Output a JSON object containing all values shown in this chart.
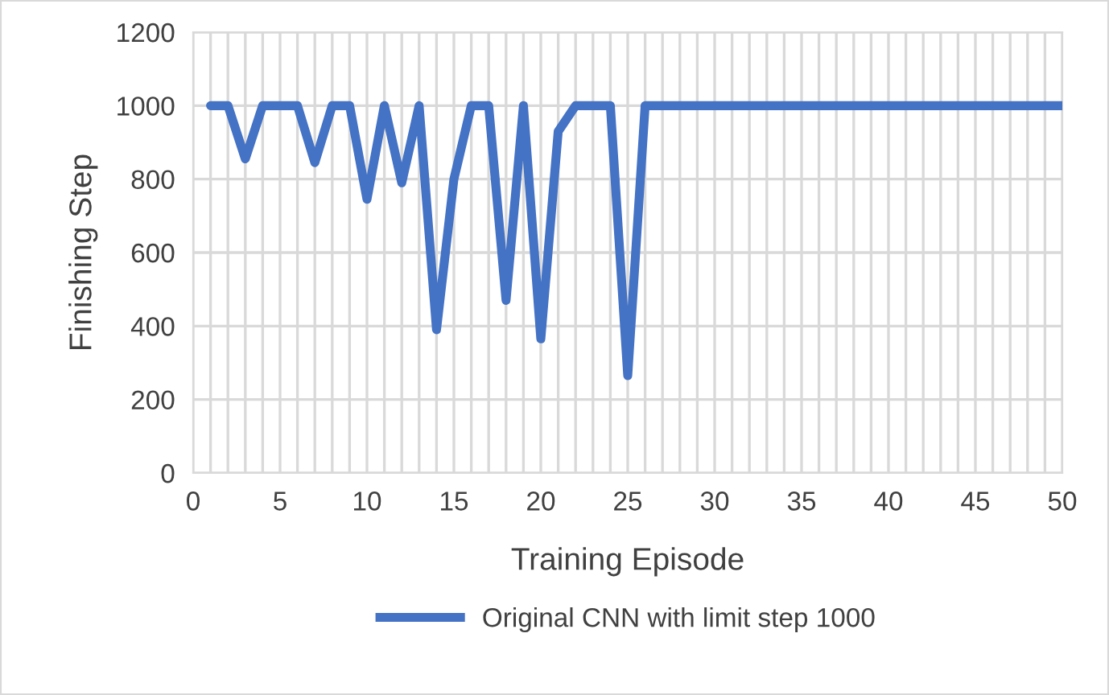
{
  "chart_data": {
    "type": "line",
    "xlabel": "Training Episode",
    "ylabel": "Finishing Step",
    "x": [
      1,
      2,
      3,
      4,
      5,
      6,
      7,
      8,
      9,
      10,
      11,
      12,
      13,
      14,
      15,
      16,
      17,
      18,
      19,
      20,
      21,
      22,
      23,
      24,
      25,
      26,
      27,
      28,
      29,
      30,
      31,
      32,
      33,
      34,
      35,
      36,
      37,
      38,
      39,
      40,
      41,
      42,
      43,
      44,
      45,
      46,
      47,
      48,
      49,
      50
    ],
    "series": [
      {
        "name": "Original CNN with limit step 1000",
        "color": "#4472c4",
        "values": [
          1000,
          1000,
          855,
          1000,
          1000,
          1000,
          845,
          1000,
          1000,
          745,
          1000,
          790,
          1000,
          390,
          800,
          1000,
          1000,
          470,
          1000,
          365,
          930,
          1000,
          1000,
          1000,
          265,
          1000,
          1000,
          1000,
          1000,
          1000,
          1000,
          1000,
          1000,
          1000,
          1000,
          1000,
          1000,
          1000,
          1000,
          1000,
          1000,
          1000,
          1000,
          1000,
          1000,
          1000,
          1000,
          1000,
          1000,
          1000
        ]
      }
    ],
    "xlim": [
      0,
      50
    ],
    "ylim": [
      0,
      1200
    ],
    "xticks": [
      0,
      {
        "value": 1,
        "label": null
      },
      {
        "value": 2,
        "label": null
      },
      {
        "value": 3,
        "label": null
      },
      {
        "value": 4,
        "label": null
      },
      5,
      {
        "value": 6,
        "label": null
      },
      {
        "value": 7,
        "label": null
      },
      {
        "value": 8,
        "label": null
      },
      {
        "value": 9,
        "label": null
      },
      10,
      {
        "value": 11,
        "label": null
      },
      {
        "value": 12,
        "label": null
      },
      {
        "value": 13,
        "label": null
      },
      {
        "value": 14,
        "label": null
      },
      15,
      {
        "value": 16,
        "label": null
      },
      {
        "value": 17,
        "label": null
      },
      {
        "value": 18,
        "label": null
      },
      {
        "value": 19,
        "label": null
      },
      20,
      {
        "value": 21,
        "label": null
      },
      {
        "value": 22,
        "label": null
      },
      {
        "value": 23,
        "label": null
      },
      {
        "value": 24,
        "label": null
      },
      25,
      {
        "value": 26,
        "label": null
      },
      {
        "value": 27,
        "label": null
      },
      {
        "value": 28,
        "label": null
      },
      {
        "value": 29,
        "label": null
      },
      30,
      {
        "value": 31,
        "label": null
      },
      {
        "value": 32,
        "label": null
      },
      {
        "value": 33,
        "label": null
      },
      {
        "value": 34,
        "label": null
      },
      35,
      {
        "value": 36,
        "label": null
      },
      {
        "value": 37,
        "label": null
      },
      {
        "value": 38,
        "label": null
      },
      {
        "value": 39,
        "label": null
      },
      40,
      {
        "value": 41,
        "label": null
      },
      {
        "value": 42,
        "label": null
      },
      {
        "value": 43,
        "label": null
      },
      {
        "value": 44,
        "label": null
      },
      45,
      {
        "value": 46,
        "label": null
      },
      {
        "value": 47,
        "label": null
      },
      {
        "value": 48,
        "label": null
      },
      {
        "value": 49,
        "label": null
      },
      50
    ],
    "yticks": [
      0,
      200,
      400,
      600,
      800,
      1000,
      1200
    ],
    "grid": true,
    "legend": "bottom",
    "marker": "none",
    "line_style": "solid"
  }
}
